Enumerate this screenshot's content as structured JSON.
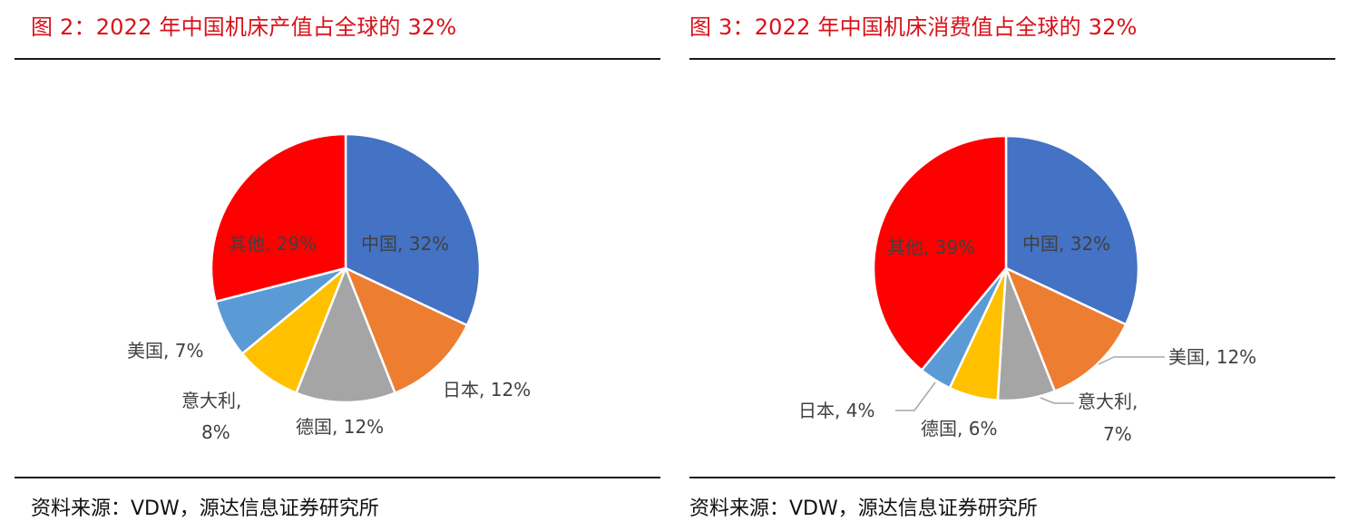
{
  "chart_data": [
    {
      "type": "pie",
      "title": "图 2：2022 年中国机床产值占全球的 32%",
      "source": "资料来源：VDW，源达信息证券研究所",
      "slices": [
        {
          "name": "中国",
          "value": 32,
          "label": "中国, 32%",
          "color": "#4472c4"
        },
        {
          "name": "日本",
          "value": 12,
          "label": "日本, 12%",
          "color": "#ed7d31"
        },
        {
          "name": "德国",
          "value": 12,
          "label": "德国, 12%",
          "color": "#a5a5a5"
        },
        {
          "name": "意大利",
          "value": 8,
          "label": [
            "意大利,",
            "8%"
          ],
          "color": "#ffc000"
        },
        {
          "name": "美国",
          "value": 7,
          "label": "美国, 7%",
          "color": "#5b9bd5"
        },
        {
          "name": "其他",
          "value": 29,
          "label": "其他, 29%",
          "color": "#ff0000"
        }
      ]
    },
    {
      "type": "pie",
      "title": "图 3：2022 年中国机床消费值占全球的 32%",
      "source": "资料来源：VDW，源达信息证券研究所",
      "slices": [
        {
          "name": "中国",
          "value": 32,
          "label": "中国, 32%",
          "color": "#4472c4"
        },
        {
          "name": "美国",
          "value": 12,
          "label": "美国, 12%",
          "color": "#ed7d31"
        },
        {
          "name": "意大利",
          "value": 7,
          "label": [
            "意大利,",
            "7%"
          ],
          "color": "#a5a5a5"
        },
        {
          "name": "德国",
          "value": 6,
          "label": "德国, 6%",
          "color": "#ffc000"
        },
        {
          "name": "日本",
          "value": 4,
          "label": "日本, 4%",
          "color": "#5b9bd5"
        },
        {
          "name": "其他",
          "value": 39,
          "label": "其他, 39%",
          "color": "#ff0000"
        }
      ]
    }
  ]
}
